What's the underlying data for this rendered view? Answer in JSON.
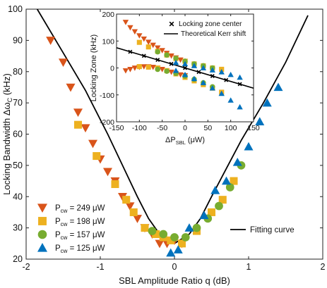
{
  "colors": {
    "p249": "#d9541a",
    "p198": "#edb120",
    "p157": "#77ac30",
    "p125": "#0072bd",
    "fit": "#000000",
    "kerr": "#000000",
    "center": "#000000"
  },
  "chart_data": [
    {
      "type": "scatter",
      "xlabel": "SBL Amplitude Ratio q (dB)",
      "ylabel": "Locking Bandwidth Δω",
      "ylabel_sub": "C",
      "ylabel_unit": " (kHz)",
      "xlim": [
        -2,
        2
      ],
      "ylim": [
        20,
        100
      ],
      "xticks": [
        -2,
        -1,
        0,
        1,
        2
      ],
      "yticks": [
        20,
        30,
        40,
        50,
        60,
        70,
        80,
        90,
        100
      ],
      "grid": false,
      "legend_placement": "bottom-left",
      "legend": [
        {
          "key": "p249",
          "marker": "triangle-down",
          "prefix": "P",
          "sub": "cw",
          "suffix": " = 249 μW"
        },
        {
          "key": "p198",
          "marker": "square",
          "prefix": "P",
          "sub": "cw",
          "suffix": " = 198 μW"
        },
        {
          "key": "p157",
          "marker": "circle",
          "prefix": "P",
          "sub": "cw",
          "suffix": " = 157 μW"
        },
        {
          "key": "p125",
          "marker": "triangle-up",
          "prefix": "P",
          "sub": "cw",
          "suffix": " = 125 μW"
        }
      ],
      "fit_legend": "Fitting curve",
      "fit_curve": {
        "x": [
          -1.85,
          -1.5,
          -1.2,
          -0.9,
          -0.7,
          -0.5,
          -0.35,
          -0.2,
          0.0,
          0.2,
          0.35,
          0.5,
          0.7,
          0.9,
          1.2,
          1.5,
          1.8
        ],
        "y": [
          100,
          86,
          74,
          60,
          50,
          40,
          33,
          28,
          25,
          28,
          33,
          40,
          49,
          58,
          70,
          83,
          98
        ]
      },
      "series": [
        {
          "key": "p249",
          "marker": "triangle-down",
          "x": [
            -1.67,
            -1.5,
            -1.4,
            -1.3,
            -1.2,
            -1.1,
            -1.0,
            -0.9,
            -0.8,
            -0.7,
            -0.6,
            -0.5,
            -0.4,
            -0.3,
            -0.2,
            -0.1,
            0.0,
            0.1
          ],
          "y": [
            90,
            83,
            75,
            67,
            62,
            57,
            52,
            48,
            45,
            40,
            37,
            33,
            30,
            28,
            25,
            25,
            26,
            25
          ]
        },
        {
          "key": "p198",
          "marker": "square",
          "x": [
            -1.3,
            -1.05,
            -0.8,
            -0.65,
            -0.55,
            -0.4,
            -0.25,
            -0.15,
            -0.05,
            0.1,
            0.3,
            0.5,
            0.65,
            0.8
          ],
          "y": [
            63,
            53,
            44,
            39,
            35,
            30,
            28,
            27,
            26,
            25,
            29,
            35,
            39,
            45
          ]
        },
        {
          "key": "p157",
          "marker": "circle",
          "x": [
            -0.3,
            -0.15,
            0.0,
            0.15,
            0.3,
            0.45,
            0.6,
            0.75,
            0.9
          ],
          "y": [
            29,
            28,
            27,
            27,
            30,
            33,
            37,
            43,
            50
          ]
        },
        {
          "key": "p125",
          "marker": "triangle-up",
          "x": [
            -0.05,
            0.05,
            0.2,
            0.4,
            0.55,
            0.7,
            0.85,
            1.0,
            1.15,
            1.25,
            1.4
          ],
          "y": [
            22,
            23,
            30,
            34,
            42,
            45,
            51,
            56,
            64,
            70,
            75
          ]
        }
      ]
    },
    {
      "type": "scatter",
      "xlabel": "ΔP",
      "xlabel_sub": "SBL",
      "xlabel_unit": " (μW)",
      "ylabel": "Locking Zone (kHz)",
      "xlim": [
        -150,
        150
      ],
      "ylim": [
        -200,
        200
      ],
      "xticks": [
        -150,
        -100,
        -50,
        0,
        50,
        100,
        150
      ],
      "yticks": [
        -200,
        -100,
        0,
        100,
        200
      ],
      "grid": false,
      "legend_placement": "top-right",
      "legend": [
        {
          "key": "center",
          "marker": "x",
          "label": "Locking zone center"
        },
        {
          "key": "kerr",
          "marker": "line",
          "label": "Theoretical Kerr shift"
        }
      ],
      "kerr_line": {
        "x": [
          -150,
          150
        ],
        "y": [
          75,
          -75
        ]
      },
      "center_points": {
        "x": [
          -120,
          -90,
          -60,
          -30,
          0,
          30,
          60,
          90,
          120
        ],
        "y": [
          60,
          45,
          30,
          15,
          0,
          -15,
          -30,
          -45,
          -60
        ]
      },
      "series": [
        {
          "key": "p249",
          "marker": "triangle-down",
          "upper_x": [
            -130,
            -120,
            -110,
            -100,
            -90,
            -80,
            -70,
            -60,
            -50,
            -40,
            -30,
            -20,
            -10,
            0
          ],
          "upper_y": [
            170,
            150,
            135,
            120,
            108,
            96,
            85,
            75,
            65,
            55,
            45,
            38,
            30,
            25
          ],
          "lower_x": [
            -130,
            -120,
            -110,
            -100,
            -90,
            -80,
            -70,
            -60,
            -50,
            -40,
            -30,
            -20,
            -10,
            0
          ],
          "lower_y": [
            -10,
            -5,
            0,
            3,
            5,
            5,
            3,
            0,
            -5,
            -10,
            -15,
            -20,
            -25,
            -28
          ]
        },
        {
          "key": "p198",
          "marker": "square",
          "upper_x": [
            -100,
            -80,
            -60,
            -40,
            -20,
            0,
            20,
            40,
            60,
            80
          ],
          "upper_y": [
            95,
            78,
            62,
            48,
            35,
            25,
            15,
            8,
            0,
            -5
          ],
          "lower_x": [
            -100,
            -80,
            -60,
            -40,
            -20,
            0,
            20,
            40,
            60,
            80
          ],
          "lower_y": [
            5,
            3,
            0,
            -10,
            -22,
            -35,
            -48,
            -62,
            -75,
            -90
          ]
        },
        {
          "key": "p157",
          "marker": "circle",
          "upper_x": [
            -60,
            -40,
            -20,
            0,
            20,
            40,
            60
          ],
          "upper_y": [
            60,
            48,
            36,
            25,
            15,
            8,
            0
          ],
          "lower_x": [
            -60,
            -40,
            -20,
            0,
            20,
            40,
            60
          ],
          "lower_y": [
            -5,
            -12,
            -20,
            -30,
            -42,
            -55,
            -70
          ]
        },
        {
          "key": "p125",
          "marker": "triangle-up",
          "upper_x": [
            -20,
            0,
            20,
            40,
            60,
            80,
            100,
            120
          ],
          "upper_y": [
            20,
            15,
            8,
            0,
            -8,
            -15,
            -25,
            -35
          ],
          "lower_x": [
            -20,
            0,
            20,
            40,
            60,
            80,
            100,
            120
          ],
          "lower_y": [
            -10,
            -25,
            -40,
            -55,
            -75,
            -95,
            -120,
            -145
          ]
        }
      ]
    }
  ]
}
